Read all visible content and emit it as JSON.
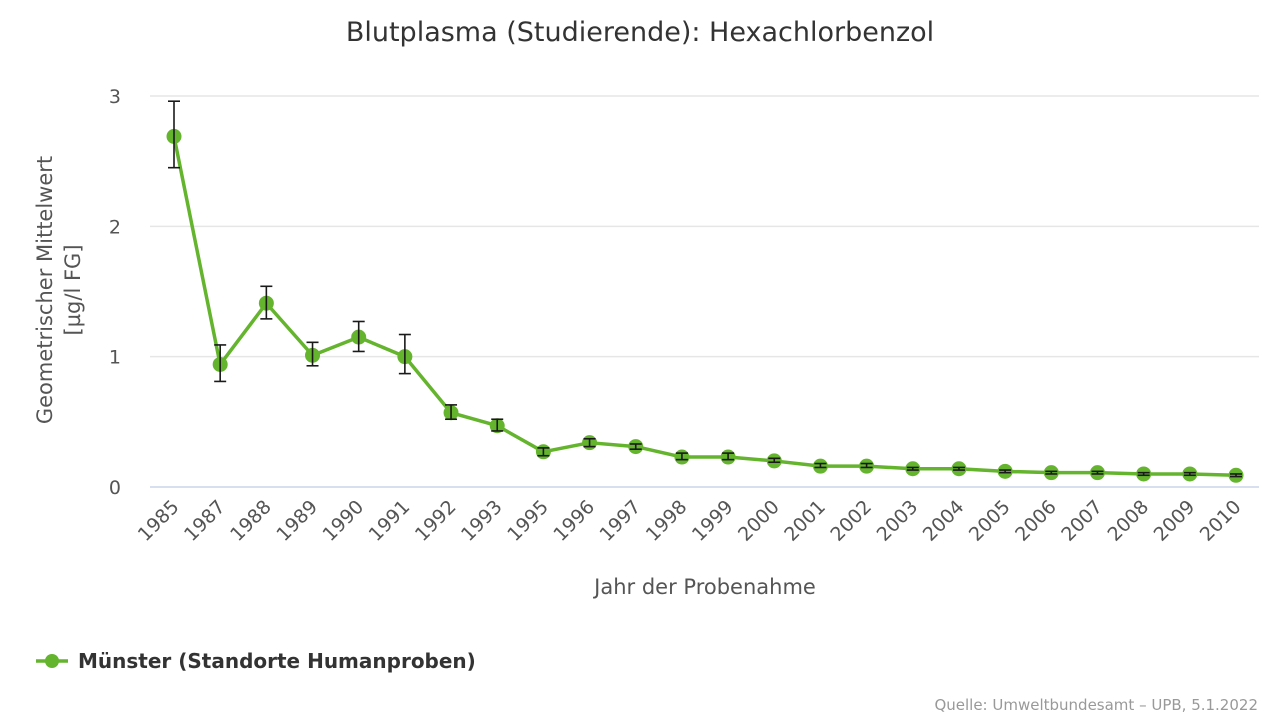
{
  "chart_data": {
    "type": "line",
    "title": "Blutplasma (Studierende): Hexachlorbenzol",
    "xlabel": "Jahr der Probenahme",
    "ylabel_line1": "Geometrischer Mittelwert",
    "ylabel_line2": "[µg/l FG]",
    "ylim": [
      0,
      3
    ],
    "yticks": [
      "0",
      "1",
      "2",
      "3"
    ],
    "grid": true,
    "categories": [
      "1985",
      "1987",
      "1988",
      "1989",
      "1990",
      "1991",
      "1992",
      "1993",
      "1995",
      "1996",
      "1997",
      "1998",
      "1999",
      "2000",
      "2001",
      "2002",
      "2003",
      "2004",
      "2005",
      "2006",
      "2007",
      "2008",
      "2009",
      "2010"
    ],
    "series": [
      {
        "name": "Münster (Standorte Humanproben)",
        "color": "#64b42d",
        "values": [
          2.69,
          0.94,
          1.41,
          1.01,
          1.15,
          1.0,
          0.57,
          0.47,
          0.27,
          0.34,
          0.31,
          0.23,
          0.23,
          0.2,
          0.16,
          0.16,
          0.14,
          0.14,
          0.12,
          0.11,
          0.11,
          0.1,
          0.1,
          0.09
        ],
        "error_low": [
          2.45,
          0.81,
          1.29,
          0.93,
          1.04,
          0.87,
          0.52,
          0.43,
          0.24,
          0.31,
          0.29,
          0.21,
          0.21,
          0.19,
          0.15,
          0.15,
          0.13,
          0.13,
          0.11,
          0.1,
          0.1,
          0.09,
          0.09,
          0.08
        ],
        "error_high": [
          2.96,
          1.09,
          1.54,
          1.11,
          1.27,
          1.17,
          0.63,
          0.52,
          0.3,
          0.37,
          0.33,
          0.26,
          0.26,
          0.22,
          0.18,
          0.18,
          0.15,
          0.15,
          0.13,
          0.12,
          0.12,
          0.11,
          0.11,
          0.1
        ]
      }
    ],
    "legend_position": "bottom-left",
    "source": "Quelle: Umweltbundesamt – UPB, 5.1.2022"
  }
}
